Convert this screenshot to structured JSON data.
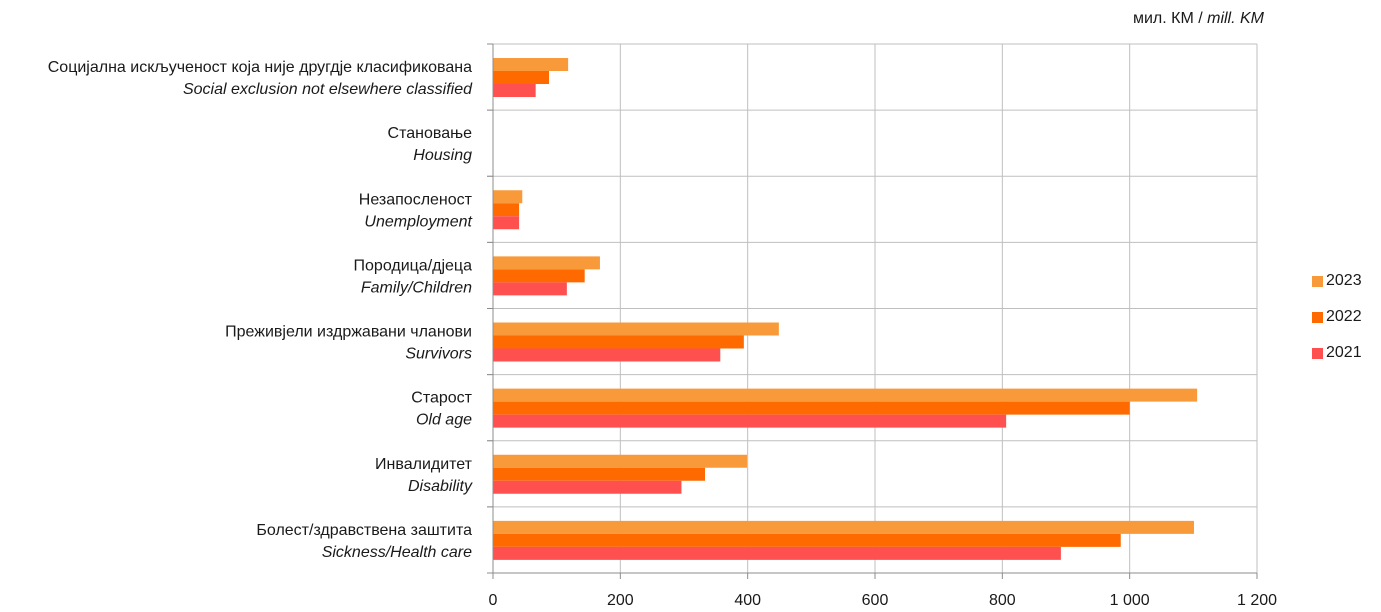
{
  "chart_data": {
    "type": "bar",
    "orientation": "horizontal",
    "unit_label_local": "мил. КМ",
    "unit_separator": " / ",
    "unit_label_en": "mill. KM",
    "categories": [
      {
        "local": "Социјална искљученост која није другдје класификована",
        "en": "Social exclusion not elsewhere classified"
      },
      {
        "local": "Становање",
        "en": "Housing"
      },
      {
        "local": "Незапосленост",
        "en": "Unemployment"
      },
      {
        "local": "Породица/дјеца",
        "en": "Family/Children"
      },
      {
        "local": "Преживјели издржавани чланови",
        "en": "Survivors"
      },
      {
        "local": "Старост",
        "en": "Old age"
      },
      {
        "local": "Инвалидитет",
        "en": "Disability"
      },
      {
        "local": "Болест/здравствена заштита",
        "en": "Sickness/Health care"
      }
    ],
    "series": [
      {
        "name": "2023",
        "color": "#f99a3a",
        "values": [
          118,
          0,
          46,
          168,
          449,
          1106,
          399,
          1101
        ]
      },
      {
        "name": "2022",
        "color": "#ff6a00",
        "values": [
          88,
          0,
          41,
          144,
          394,
          1000,
          333,
          986
        ]
      },
      {
        "name": "2021",
        "color": "#ff5050",
        "values": [
          67,
          0,
          41,
          116,
          357,
          806,
          296,
          892
        ]
      }
    ],
    "xlim": [
      0,
      1200
    ],
    "xticks": [
      0,
      200,
      400,
      600,
      800,
      1000,
      1200
    ],
    "xtick_labels": [
      "0",
      "200",
      "400",
      "600",
      "800",
      "1 000",
      "1 200"
    ],
    "grid": true,
    "legend_position": "right"
  }
}
